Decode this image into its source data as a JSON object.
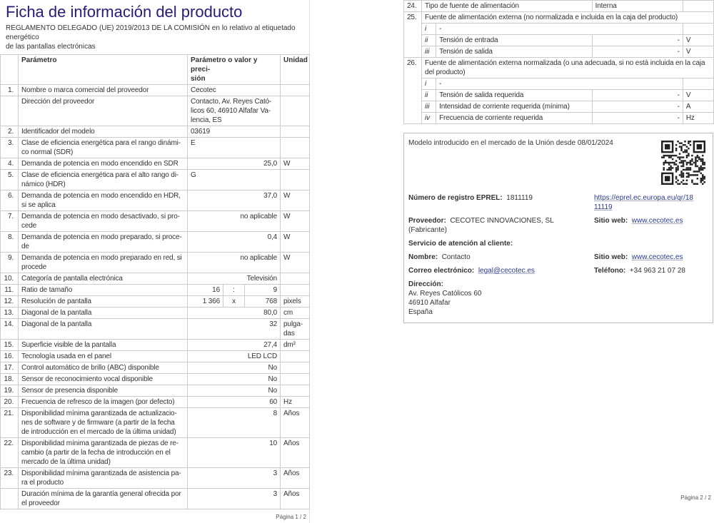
{
  "page1": {
    "title": "Ficha de información del producto",
    "subtitle": "REGLAMENTO DELEGADO (UE) 2019/2013 DE LA COMISIÓN en lo relativo al etiquetado energético\nde las pantallas electrónicas",
    "headers": {
      "param": "Parámetro",
      "value": "Parámetro o valor y preci-\nsión",
      "unit": "Unidad"
    },
    "rows": [
      {
        "n": "1.",
        "p": "Nombre o marca comercial del proveedor",
        "v": "Cecotec",
        "u": "",
        "align": "l"
      },
      {
        "n": "",
        "p": "Dirección del proveedor",
        "v": "Contacto, Av. Reyes Cató-\nlicos 60, 46910 Alfafar Va-\nlencia, ES",
        "u": "",
        "align": "l"
      },
      {
        "n": "2.",
        "p": "Identificador del modelo",
        "v": "03619",
        "u": "",
        "align": "l"
      },
      {
        "n": "3.",
        "p": "Clase de eficiencia energética para el rango dinámi-\nco normal (SDR)",
        "v": "E",
        "u": "",
        "align": "l"
      },
      {
        "n": "4.",
        "p": "Demanda de potencia en modo encendido en SDR",
        "v": "25,0",
        "u": "W",
        "align": "r"
      },
      {
        "n": "5.",
        "p": "Clase de eficiencia energética para el alto rango di-\nnámico (HDR)",
        "v": "G",
        "u": "",
        "align": "l"
      },
      {
        "n": "6.",
        "p": "Demanda de potencia en modo encendido en HDR,\nsi se aplica",
        "v": "37,0",
        "u": "W",
        "align": "r"
      },
      {
        "n": "7.",
        "p": "Demanda de potencia en modo desactivado, si pro-\ncede",
        "v": "no aplicable",
        "u": "W",
        "align": "r"
      },
      {
        "n": "8.",
        "p": "Demanda de potencia en modo preparado, si proce-\nde",
        "v": "0,4",
        "u": "W",
        "align": "r"
      },
      {
        "n": "9.",
        "p": "Demanda de potencia en modo preparado en red, si\nprocede",
        "v": "no aplicable",
        "u": "W",
        "align": "r"
      },
      {
        "n": "10.",
        "p": "Categoría de pantalla electrónica",
        "v": "Televisión",
        "u": "",
        "align": "r"
      },
      {
        "n": "11.",
        "p": "Ratio de tamaño",
        "split": [
          "16",
          ":",
          "9"
        ],
        "u": ""
      },
      {
        "n": "12.",
        "p": "Resolución de pantalla",
        "split": [
          "1 366",
          "x",
          "768"
        ],
        "u": "pixels"
      },
      {
        "n": "13.",
        "p": "Diagonal de la pantalla",
        "v": "80,0",
        "u": "cm",
        "align": "r"
      },
      {
        "n": "14.",
        "p": "Diagonal de la pantalla",
        "v": "32",
        "u": "pulga-\ndas",
        "align": "r"
      },
      {
        "n": "15.",
        "p": "Superficie visible de la pantalla",
        "v": "27,4",
        "u": "dm²",
        "align": "r"
      },
      {
        "n": "16.",
        "p": "Tecnología usada en el panel",
        "v": "LED LCD",
        "u": "",
        "align": "r"
      },
      {
        "n": "17.",
        "p": "Control automático de brillo (ABC) disponible",
        "v": "No",
        "u": "",
        "align": "r"
      },
      {
        "n": "18.",
        "p": "Sensor de reconocimiento vocal disponible",
        "v": "No",
        "u": "",
        "align": "r"
      },
      {
        "n": "19.",
        "p": "Sensor de presencia disponible",
        "v": "No",
        "u": "",
        "align": "r"
      },
      {
        "n": "20.",
        "p": "Frecuencia de refresco de la imagen (por defecto)",
        "v": "60",
        "u": "Hz",
        "align": "r"
      },
      {
        "n": "21.",
        "p": "Disponibilidad mínima garantizada de actualizacio-\nnes de software y de firmware (a partir de la fecha\nde introducción en el mercado de la última unidad)",
        "v": "8",
        "u": "Años",
        "align": "r"
      },
      {
        "n": "22.",
        "p": "Disponibilidad mínima garantizada de piezas de re-\ncambio (a partir de la fecha de introducción en el\nmercado de la última unidad)",
        "v": "10",
        "u": "Años",
        "align": "r"
      },
      {
        "n": "23.",
        "p": "Disponibilidad mínima garantizada de asistencia pa-\nra el producto",
        "v": "3",
        "u": "Años",
        "align": "r"
      },
      {
        "n": "",
        "p": "Duración mínima de la garantía general ofrecida por\nel proveedor",
        "v": "3",
        "u": "Años",
        "align": "r"
      }
    ],
    "footer": "Página 1 / 2"
  },
  "page2": {
    "r24": {
      "n": "24.",
      "p": "Tipo de fuente de alimentación",
      "v": "Interna"
    },
    "r25": {
      "n": "25.",
      "p": "Fuente de alimentación externa (no normalizada e incluida en la caja del producto)",
      "subs": [
        {
          "i": "i",
          "p": "-",
          "v": "",
          "u": ""
        },
        {
          "i": "ii",
          "p": "Tensión de entrada",
          "v": "-",
          "u": "V"
        },
        {
          "i": "iii",
          "p": "Tensión de salida",
          "v": "-",
          "u": "V"
        }
      ]
    },
    "r26": {
      "n": "26.",
      "p": "Fuente de alimentación externa normalizada (o una adecuada, si no está incluida en la caja\ndel producto)",
      "subs": [
        {
          "i": "i",
          "p": "-",
          "v": "",
          "u": ""
        },
        {
          "i": "ii",
          "p": "Tensión de salida requerida",
          "v": "-",
          "u": "V"
        },
        {
          "i": "iii",
          "p": "Intensidad de corriente requerida (mínima)",
          "v": "-",
          "u": "A"
        },
        {
          "i": "iv",
          "p": "Frecuencia de corriente requerida",
          "v": "-",
          "u": "Hz"
        }
      ]
    },
    "info": {
      "market": "Modelo introducido en el mercado de la Unión desde 08/01/2024",
      "eprel_label": "Número de registro EPREL:",
      "eprel": "1811119",
      "eprel_url": "https://eprel.ec.europa.eu/qr/18\n11119",
      "supplier_label": "Proveedor:",
      "supplier": "CECOTEC INNOVACIONES, SL (Fabricante)",
      "web_label": "Sitio web:",
      "web": "www.cecotec.es",
      "service_label": "Servicio de atención al cliente:",
      "name_label": "Nombre:",
      "name": "Contacto",
      "web2_label": "Sitio web:",
      "web2": "www.cecotec.es",
      "email_label": "Correo electrónico:",
      "email": "legal@cecotec.es",
      "phone_label": "Teléfono:",
      "phone": "+34 963 21 07 28",
      "address_label": "Dirección:",
      "address": "Av. Reyes Católicos 60\n46910 Alfafar\nEspaña",
      "qr_icon": "qr-code"
    },
    "footer": "Página 2 / 2"
  }
}
